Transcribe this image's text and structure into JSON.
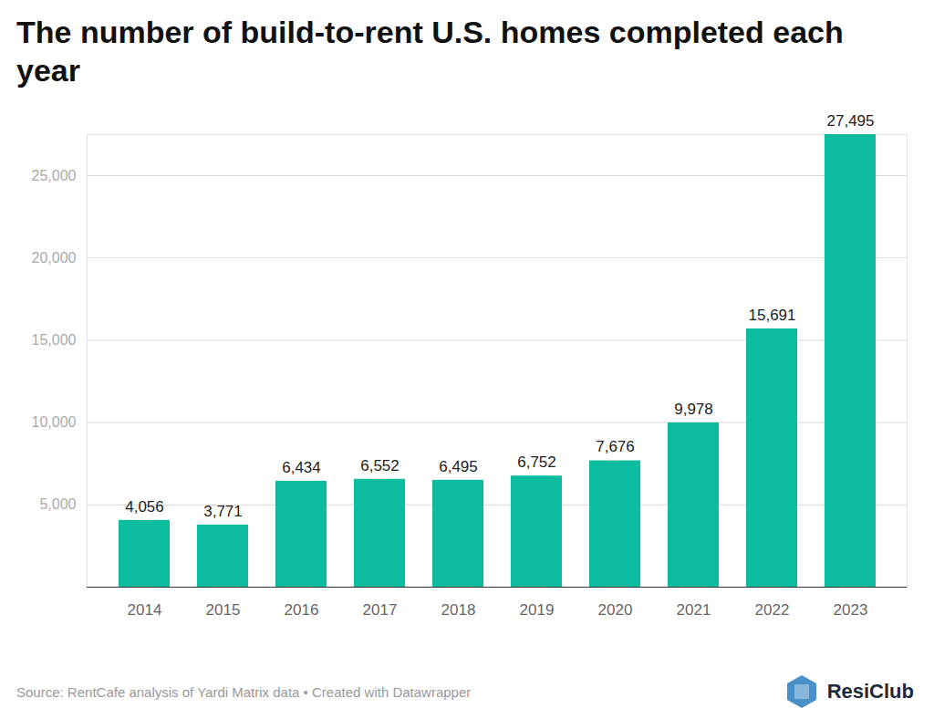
{
  "chart_data": {
    "type": "bar",
    "title": "The number of build-to-rent U.S. homes completed each year",
    "source": "Source: RentCafe analysis of Yardi Matrix data • Created with Datawrapper",
    "logo_text": "ResiClub",
    "categories": [
      "2014",
      "2015",
      "2016",
      "2017",
      "2018",
      "2019",
      "2020",
      "2021",
      "2022",
      "2023"
    ],
    "values": [
      4056,
      3771,
      6434,
      6552,
      6495,
      6752,
      7676,
      9978,
      15691,
      27495
    ],
    "value_labels": [
      "4,056",
      "3,771",
      "6,434",
      "6,552",
      "6,495",
      "6,752",
      "7,676",
      "9,978",
      "15,691",
      "27,495"
    ],
    "data_labels": true,
    "color": "#0bbc9f",
    "ylim": [
      0,
      27495
    ],
    "yticks": [
      {
        "value": 5000,
        "label": "5,000"
      },
      {
        "value": 10000,
        "label": "10,000"
      },
      {
        "value": 15000,
        "label": "15,000"
      },
      {
        "value": 20000,
        "label": "20,000"
      },
      {
        "value": 25000,
        "label": "25,000"
      }
    ],
    "grid": true
  }
}
